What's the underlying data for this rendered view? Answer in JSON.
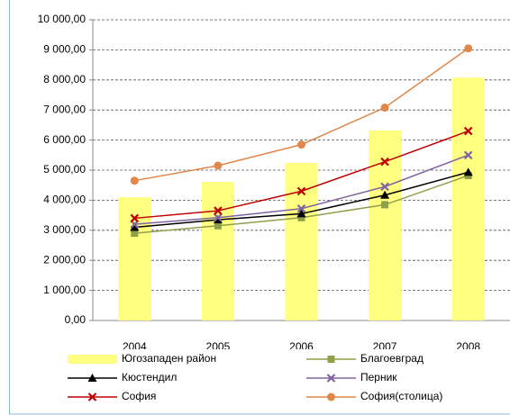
{
  "chart_data": {
    "type": "bar",
    "categories": [
      "2004",
      "2005",
      "2006",
      "2007",
      "2008"
    ],
    "series": [
      {
        "name": "Югозападен район",
        "type": "bar",
        "color": "#ffff80",
        "values": [
          4100,
          4610,
          5240,
          6320,
          8080
        ]
      },
      {
        "name": "Благоевград",
        "type": "line",
        "marker": "square",
        "color": "#8ea04a",
        "values": [
          2900,
          3150,
          3420,
          3850,
          4820
        ]
      },
      {
        "name": "Кюстендил",
        "type": "line",
        "marker": "triangle",
        "color": "#000000",
        "values": [
          3100,
          3350,
          3550,
          4170,
          4930
        ]
      },
      {
        "name": "Перник",
        "type": "line",
        "marker": "x",
        "color": "#8064a2",
        "values": [
          3200,
          3420,
          3720,
          4450,
          5500
        ]
      },
      {
        "name": "София",
        "type": "line",
        "marker": "x",
        "color": "#c00000",
        "values": [
          3400,
          3650,
          4300,
          5280,
          6300
        ]
      },
      {
        "name": "София(столица)",
        "type": "line",
        "marker": "circle",
        "color": "#e0884a",
        "values": [
          4650,
          5150,
          5850,
          7080,
          9050
        ]
      }
    ],
    "ylim": [
      0,
      10000
    ],
    "yticks": [
      {
        "value": 0,
        "label": "0,00"
      },
      {
        "value": 1000,
        "label": "1 000,00"
      },
      {
        "value": 2000,
        "label": "2 000,00"
      },
      {
        "value": 3000,
        "label": "3 000,00"
      },
      {
        "value": 4000,
        "label": "4 000,00"
      },
      {
        "value": 5000,
        "label": "5 000,00"
      },
      {
        "value": 6000,
        "label": "6 000,00"
      },
      {
        "value": 7000,
        "label": "7 000,00"
      },
      {
        "value": 8000,
        "label": "8 000,00"
      },
      {
        "value": 9000,
        "label": "9 000,00"
      },
      {
        "value": 10000,
        "label": "10 000,00"
      }
    ],
    "grid": true,
    "legend": "bottom"
  }
}
